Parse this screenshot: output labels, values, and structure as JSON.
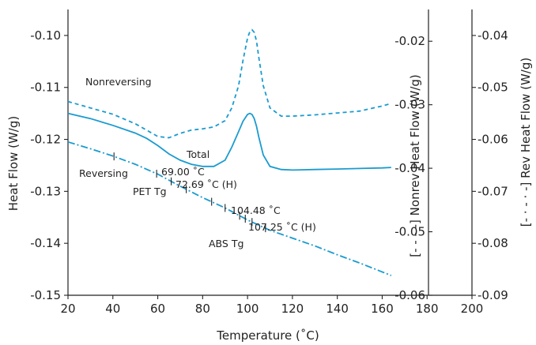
{
  "chart_data": {
    "type": "line",
    "title": "",
    "xlabel": "Temperature (˚C)",
    "ylabel": "Heat Flow (W/g)",
    "y2label": "[- - - -] Nonrev Heat Flow (W/g)",
    "y3label": "[- · - · -] Rev Heat Flow (W/g)",
    "xlim": [
      20,
      200
    ],
    "ylim": [
      -0.15,
      -0.095
    ],
    "y2lim": [
      -0.06,
      -0.015
    ],
    "y3lim": [
      -0.09,
      -0.035
    ],
    "x_ticks": [
      "20",
      "40",
      "60",
      "80",
      "100",
      "120",
      "140",
      "160",
      "180",
      "200"
    ],
    "y_ticks": [
      "-0.15",
      "-0.14",
      "-0.13",
      "-0.12",
      "-0.11",
      "-0.10"
    ],
    "y2_ticks": [
      "-0.06",
      "-0.05",
      "-0.04",
      "-0.03",
      "-0.02"
    ],
    "y3_ticks": [
      "-0.09",
      "-0.08",
      "-0.07",
      "-0.06",
      "-0.05",
      "-0.04"
    ],
    "grid": false,
    "color": "#1a9bd0",
    "series": [
      {
        "name": "Nonreversing",
        "axis": "y2",
        "style": "dashed",
        "x": [
          20,
          30,
          40,
          50,
          55,
          60,
          65,
          70,
          75,
          80,
          85,
          90,
          93,
          96,
          98,
          100,
          101,
          102,
          103,
          104,
          105,
          107,
          110,
          115,
          120,
          130,
          140,
          150,
          160,
          164
        ],
        "y": [
          -0.0295,
          -0.0305,
          -0.0315,
          -0.033,
          -0.034,
          -0.035,
          -0.0352,
          -0.0345,
          -0.034,
          -0.0338,
          -0.0335,
          -0.0325,
          -0.0305,
          -0.027,
          -0.023,
          -0.0195,
          -0.0185,
          -0.0182,
          -0.0186,
          -0.02,
          -0.0225,
          -0.027,
          -0.0305,
          -0.0318,
          -0.0318,
          -0.0316,
          -0.0313,
          -0.031,
          -0.0302,
          -0.0298
        ]
      },
      {
        "name": "Total",
        "axis": "y",
        "style": "solid",
        "x": [
          20,
          30,
          40,
          50,
          55,
          60,
          65,
          70,
          75,
          80,
          85,
          90,
          93,
          96,
          98,
          100,
          101,
          102,
          103,
          104,
          105,
          107,
          110,
          115,
          120,
          130,
          140,
          150,
          160,
          164
        ],
        "y": [
          -0.115,
          -0.116,
          -0.1173,
          -0.1188,
          -0.1198,
          -0.1212,
          -0.1228,
          -0.124,
          -0.1248,
          -0.1252,
          -0.1252,
          -0.124,
          -0.1215,
          -0.1185,
          -0.1165,
          -0.1152,
          -0.115,
          -0.1152,
          -0.116,
          -0.1175,
          -0.1195,
          -0.123,
          -0.1252,
          -0.1258,
          -0.1259,
          -0.1258,
          -0.1257,
          -0.1256,
          -0.1255,
          -0.1254
        ]
      },
      {
        "name": "Reversing",
        "axis": "y3",
        "style": "dashdot",
        "x": [
          20,
          30,
          40,
          50,
          60,
          70,
          80,
          90,
          100,
          110,
          120,
          130,
          140,
          150,
          160,
          164
        ],
        "y": [
          -0.0605,
          -0.0618,
          -0.0632,
          -0.0648,
          -0.0667,
          -0.069,
          -0.0712,
          -0.0732,
          -0.0755,
          -0.0775,
          -0.079,
          -0.0805,
          -0.0822,
          -0.0838,
          -0.0855,
          -0.0862
        ]
      }
    ],
    "markers": [
      40.5,
      59.5,
      66,
      72.7,
      84,
      90,
      96.5,
      99,
      102,
      108
    ],
    "annotations": {
      "nonreversing": "Nonreversing",
      "total": "Total",
      "reversing": "Reversing",
      "pet_onset": "69.00 ˚C",
      "pet_mid": "72.69 ˚C (H)",
      "pet_tg": "PET Tg",
      "abs_onset": "104.48 ˚C",
      "abs_mid": "107.25 ˚C (H)",
      "abs_tg": "ABS Tg"
    }
  }
}
